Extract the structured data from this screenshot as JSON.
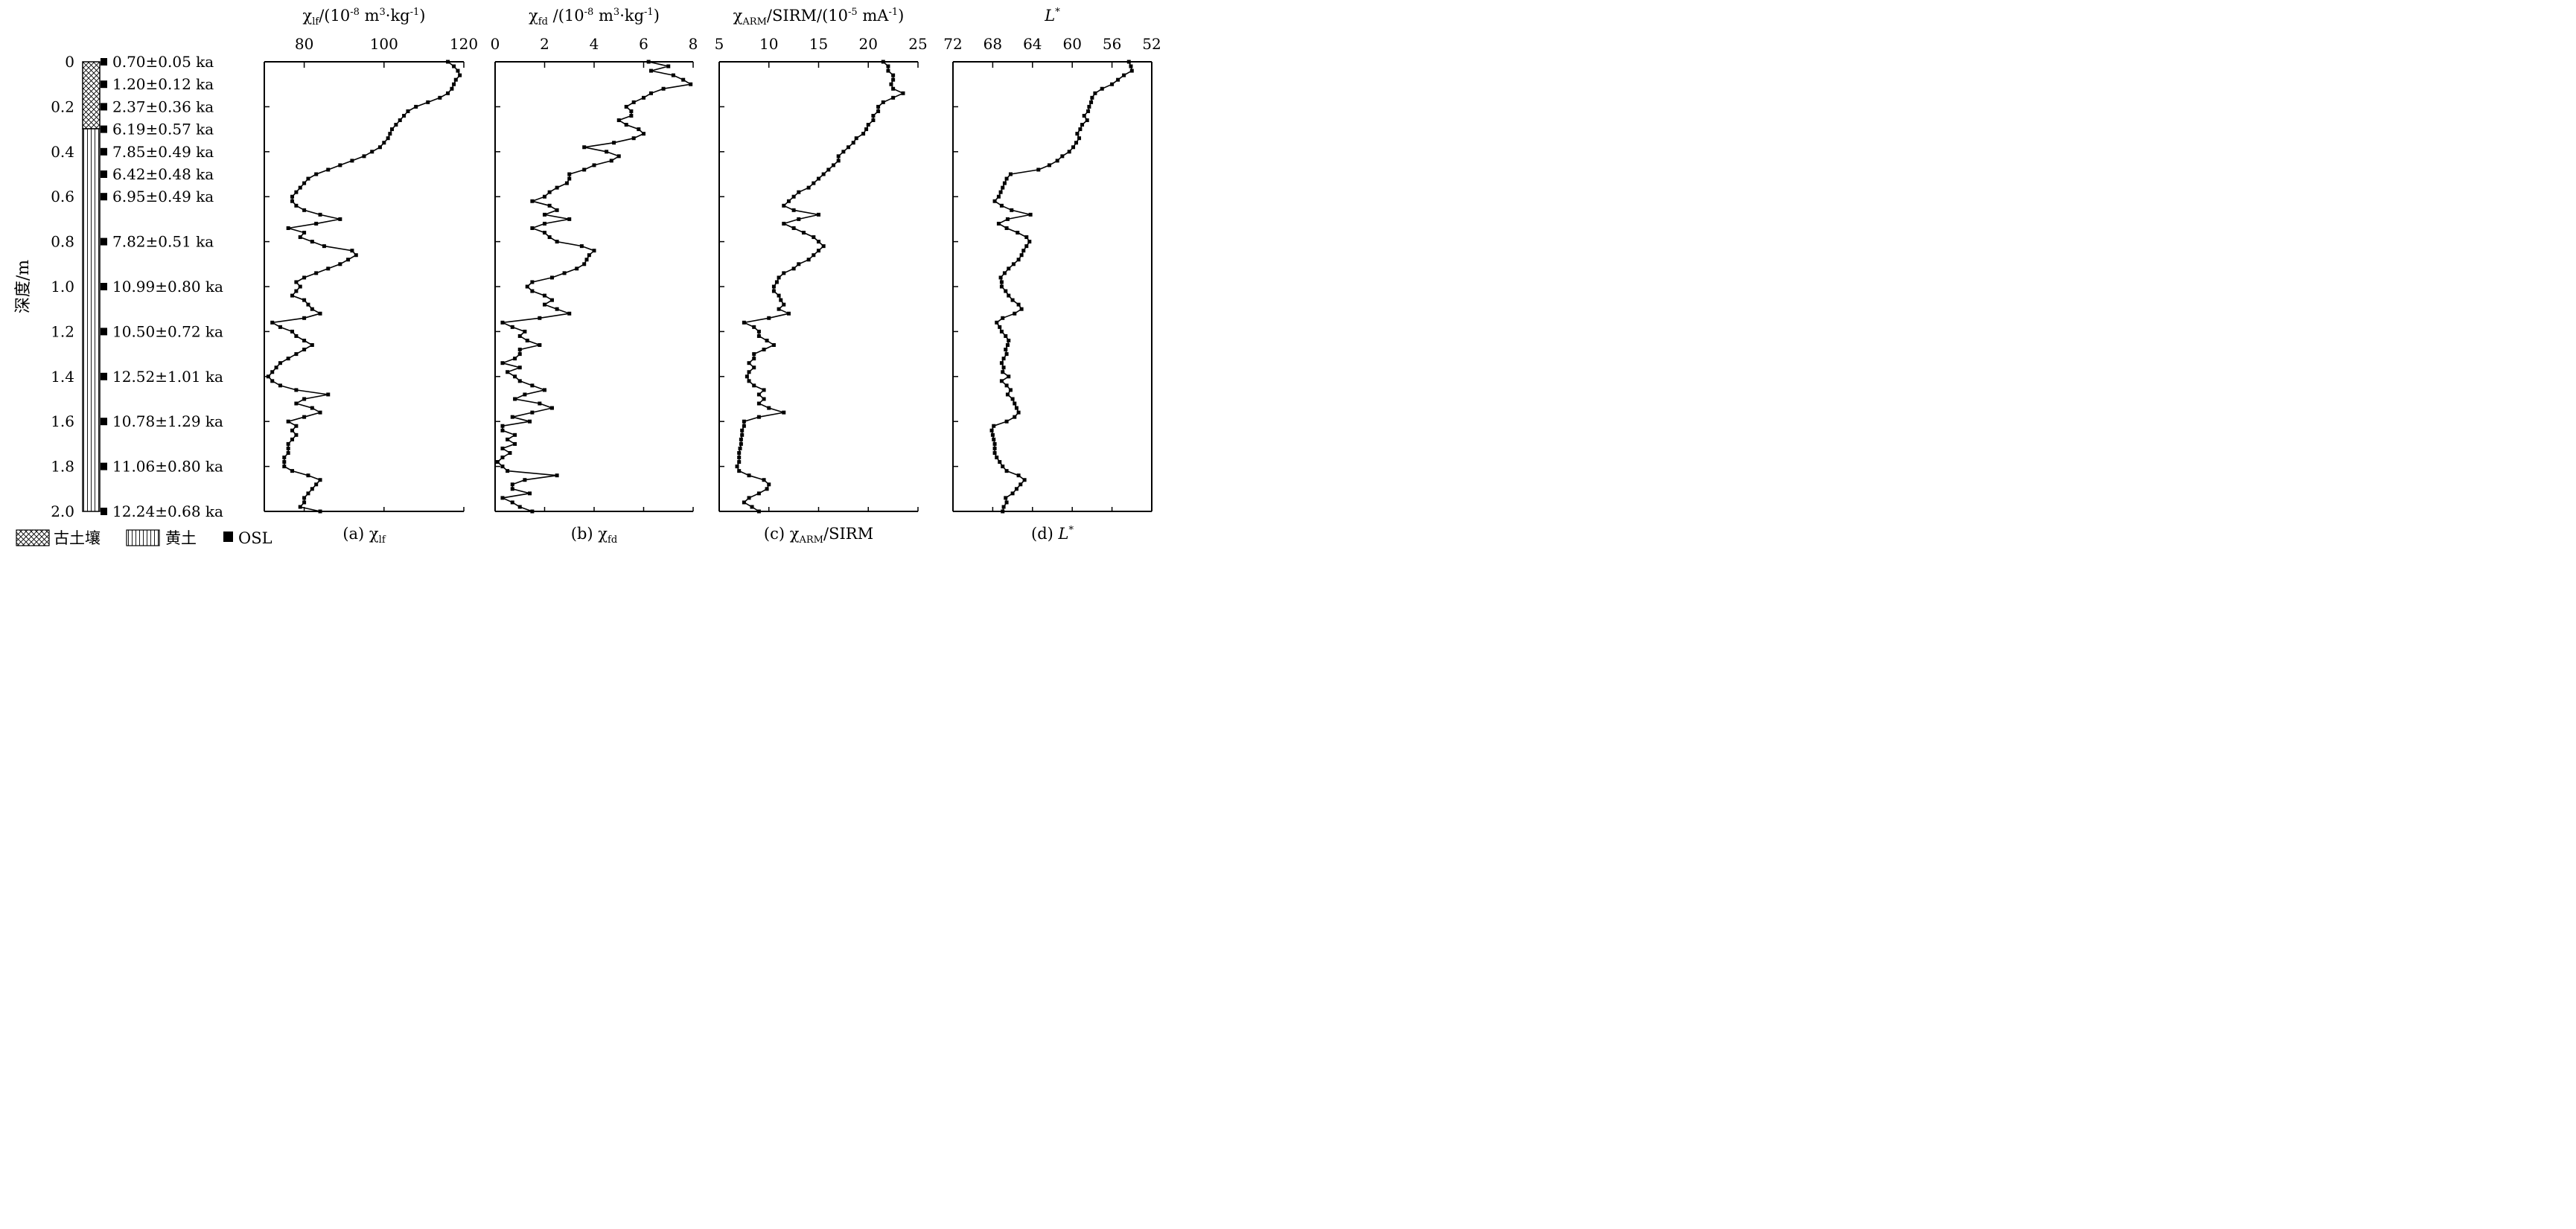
{
  "depth_axis": {
    "label": "深度/m",
    "ticks": [
      "0",
      "0.2",
      "0.4",
      "0.6",
      "0.8",
      "1.0",
      "1.2",
      "1.4",
      "1.6",
      "1.8",
      "2.0"
    ],
    "range": [
      0,
      2.0
    ]
  },
  "stratigraphy": [
    {
      "unit": "paleosol",
      "from": 0,
      "to": 0.3
    },
    {
      "unit": "loess",
      "from": 0.3,
      "to": 2.0
    }
  ],
  "osl": [
    {
      "depth": 0.0,
      "label": "0.70±0.05 ka"
    },
    {
      "depth": 0.1,
      "label": "1.20±0.12 ka"
    },
    {
      "depth": 0.2,
      "label": "2.37±0.36 ka"
    },
    {
      "depth": 0.3,
      "label": "6.19±0.57 ka"
    },
    {
      "depth": 0.4,
      "label": "7.85±0.49 ka"
    },
    {
      "depth": 0.5,
      "label": "6.42±0.48 ka"
    },
    {
      "depth": 0.6,
      "label": "6.95±0.49 ka"
    },
    {
      "depth": 0.8,
      "label": "7.82±0.51 ka"
    },
    {
      "depth": 1.0,
      "label": "10.99±0.80 ka"
    },
    {
      "depth": 1.2,
      "label": "10.50±0.72 ka"
    },
    {
      "depth": 1.4,
      "label": "12.52±1.01 ka"
    },
    {
      "depth": 1.6,
      "label": "10.78±1.29 ka"
    },
    {
      "depth": 1.8,
      "label": "11.06±0.80 ka"
    },
    {
      "depth": 2.0,
      "label": "12.24±0.68 ka"
    }
  ],
  "legend": [
    {
      "key": "paleosol",
      "label": "古土壤"
    },
    {
      "key": "loess",
      "label": "黄土"
    },
    {
      "key": "osl",
      "label": "OSL"
    }
  ],
  "chart_data": [
    {
      "type": "line",
      "title": "χlf/(10-8 m3·kg-1)",
      "caption": "(a) χlf",
      "xlim": [
        70,
        120
      ],
      "ticks": [
        "80",
        "100",
        "120"
      ],
      "depth": [
        0.0,
        0.02,
        0.04,
        0.06,
        0.08,
        0.1,
        0.12,
        0.14,
        0.16,
        0.18,
        0.2,
        0.22,
        0.24,
        0.26,
        0.28,
        0.3,
        0.32,
        0.34,
        0.36,
        0.38,
        0.4,
        0.42,
        0.44,
        0.46,
        0.48,
        0.5,
        0.52,
        0.54,
        0.56,
        0.58,
        0.6,
        0.62,
        0.64,
        0.66,
        0.68,
        0.7,
        0.72,
        0.74,
        0.76,
        0.78,
        0.8,
        0.82,
        0.84,
        0.86,
        0.88,
        0.9,
        0.92,
        0.94,
        0.96,
        0.98,
        1.0,
        1.02,
        1.04,
        1.06,
        1.08,
        1.1,
        1.12,
        1.14,
        1.16,
        1.18,
        1.2,
        1.22,
        1.24,
        1.26,
        1.28,
        1.3,
        1.32,
        1.34,
        1.36,
        1.38,
        1.4,
        1.42,
        1.44,
        1.46,
        1.48,
        1.5,
        1.52,
        1.54,
        1.56,
        1.58,
        1.6,
        1.62,
        1.64,
        1.66,
        1.68,
        1.7,
        1.72,
        1.74,
        1.76,
        1.78,
        1.8,
        1.82,
        1.84,
        1.86,
        1.88,
        1.9,
        1.92,
        1.94,
        1.96,
        1.98,
        2.0
      ],
      "values": [
        116,
        117.5,
        118.5,
        119,
        118,
        117.5,
        117,
        116,
        114,
        111,
        108,
        106,
        105,
        104,
        103,
        102,
        101.5,
        101,
        100,
        99,
        97,
        95,
        92,
        89,
        86,
        83,
        81,
        80,
        79,
        78,
        77,
        77,
        78,
        80,
        84,
        89,
        83,
        76,
        80,
        79,
        82,
        85,
        92,
        93,
        91,
        89,
        86,
        83,
        80,
        78,
        79,
        78,
        77,
        80,
        81,
        82,
        84,
        80,
        72,
        74,
        77,
        78,
        80,
        82,
        80,
        78,
        76,
        74,
        73,
        72,
        71,
        72,
        74,
        78,
        86,
        80,
        78,
        82,
        84,
        80,
        76,
        78,
        77,
        78,
        77,
        76,
        76,
        76,
        75,
        75,
        75,
        77,
        81,
        84,
        83,
        82,
        81,
        80,
        80,
        79,
        84
      ]
    },
    {
      "type": "line",
      "title": "χfd /(10-8 m3·kg-1)",
      "caption": "(b) χfd",
      "xlim": [
        0,
        8
      ],
      "ticks": [
        "0",
        "2",
        "4",
        "6",
        "8"
      ],
      "depth": [
        0.0,
        0.02,
        0.04,
        0.06,
        0.08,
        0.1,
        0.12,
        0.14,
        0.16,
        0.18,
        0.2,
        0.22,
        0.24,
        0.26,
        0.28,
        0.3,
        0.32,
        0.34,
        0.36,
        0.38,
        0.4,
        0.42,
        0.44,
        0.46,
        0.48,
        0.5,
        0.52,
        0.54,
        0.56,
        0.58,
        0.6,
        0.62,
        0.64,
        0.66,
        0.68,
        0.7,
        0.72,
        0.74,
        0.76,
        0.78,
        0.8,
        0.82,
        0.84,
        0.86,
        0.88,
        0.9,
        0.92,
        0.94,
        0.96,
        0.98,
        1.0,
        1.02,
        1.04,
        1.06,
        1.08,
        1.1,
        1.12,
        1.14,
        1.16,
        1.18,
        1.2,
        1.22,
        1.24,
        1.26,
        1.28,
        1.3,
        1.32,
        1.34,
        1.36,
        1.38,
        1.4,
        1.42,
        1.44,
        1.46,
        1.48,
        1.5,
        1.52,
        1.54,
        1.56,
        1.58,
        1.6,
        1.62,
        1.64,
        1.66,
        1.68,
        1.7,
        1.72,
        1.74,
        1.76,
        1.78,
        1.8,
        1.82,
        1.84,
        1.86,
        1.88,
        1.9,
        1.92,
        1.94,
        1.96,
        1.98,
        2.0
      ],
      "values": [
        6.2,
        7,
        6.3,
        7.2,
        7.6,
        7.9,
        6.8,
        6.3,
        6.0,
        5.6,
        5.3,
        5.5,
        5.5,
        5.0,
        5.3,
        5.8,
        6.0,
        5.6,
        4.8,
        3.6,
        4.5,
        5.0,
        4.7,
        4.0,
        3.6,
        3.0,
        3.0,
        2.9,
        2.5,
        2.2,
        2.0,
        1.5,
        2.2,
        2.5,
        2.0,
        3.0,
        2.0,
        1.5,
        2.0,
        2.2,
        2.5,
        3.5,
        4.0,
        3.8,
        3.7,
        3.6,
        3.3,
        2.8,
        2.3,
        1.5,
        1.3,
        1.5,
        2.0,
        2.3,
        2.0,
        2.5,
        3.0,
        1.8,
        0.3,
        0.7,
        1.2,
        1.0,
        1.3,
        1.8,
        1.0,
        1.0,
        0.8,
        0.3,
        1.0,
        0.5,
        0.8,
        1.0,
        1.5,
        2.0,
        1.2,
        0.8,
        1.8,
        2.3,
        1.5,
        0.7,
        1.4,
        0.3,
        0.3,
        0.8,
        0.5,
        0.8,
        0.3,
        0.6,
        0.3,
        0.1,
        0.3,
        0.5,
        2.5,
        1.2,
        0.7,
        0.7,
        1.4,
        0.3,
        0.7,
        1.0,
        1.5
      ]
    },
    {
      "type": "line",
      "title": "χARM/SIRM/(10-5 mA-1)",
      "caption": "(c) χARM/SIRM",
      "xlim": [
        5,
        25
      ],
      "ticks": [
        "5",
        "10",
        "15",
        "20",
        "25"
      ],
      "depth": [
        0.0,
        0.02,
        0.04,
        0.06,
        0.08,
        0.1,
        0.12,
        0.14,
        0.16,
        0.18,
        0.2,
        0.22,
        0.24,
        0.26,
        0.28,
        0.3,
        0.32,
        0.34,
        0.36,
        0.38,
        0.4,
        0.42,
        0.44,
        0.46,
        0.48,
        0.5,
        0.52,
        0.54,
        0.56,
        0.58,
        0.6,
        0.62,
        0.64,
        0.66,
        0.68,
        0.7,
        0.72,
        0.74,
        0.76,
        0.78,
        0.8,
        0.82,
        0.84,
        0.86,
        0.88,
        0.9,
        0.92,
        0.94,
        0.96,
        0.98,
        1.0,
        1.02,
        1.04,
        1.06,
        1.08,
        1.1,
        1.12,
        1.14,
        1.16,
        1.18,
        1.2,
        1.22,
        1.24,
        1.26,
        1.28,
        1.3,
        1.32,
        1.34,
        1.36,
        1.38,
        1.4,
        1.42,
        1.44,
        1.46,
        1.48,
        1.5,
        1.52,
        1.54,
        1.56,
        1.58,
        1.6,
        1.62,
        1.64,
        1.66,
        1.68,
        1.7,
        1.72,
        1.74,
        1.76,
        1.78,
        1.8,
        1.82,
        1.84,
        1.86,
        1.88,
        1.9,
        1.92,
        1.94,
        1.96,
        1.98,
        2.0
      ],
      "values": [
        21.5,
        22,
        22,
        22.5,
        22.5,
        22.3,
        22.5,
        23.5,
        22.5,
        21.5,
        21.0,
        21.0,
        20.5,
        20.5,
        20.0,
        19.8,
        19.5,
        18.8,
        18.5,
        18.0,
        17.5,
        17.0,
        17.0,
        16.5,
        16.0,
        15.5,
        15.0,
        14.5,
        14.0,
        13.0,
        12.5,
        12.0,
        11.5,
        12.5,
        15.0,
        13.0,
        11.5,
        12.5,
        13.5,
        14.5,
        15.0,
        15.5,
        15.0,
        14.5,
        14.0,
        13.0,
        12.5,
        11.5,
        11.0,
        10.8,
        10.5,
        10.5,
        11.0,
        11.2,
        11.5,
        11.0,
        12.0,
        10.0,
        7.5,
        8.5,
        9.0,
        9.0,
        9.8,
        10.5,
        9.5,
        8.5,
        8.5,
        8.0,
        8.5,
        8.0,
        7.8,
        8.0,
        8.5,
        9.5,
        9.0,
        9.5,
        9.0,
        10.0,
        11.5,
        9.0,
        7.5,
        7.5,
        7.3,
        7.3,
        7.2,
        7.2,
        7.1,
        7.0,
        7.0,
        7.0,
        6.8,
        7.0,
        8.0,
        9.5,
        10.0,
        9.8,
        9.0,
        8.0,
        7.5,
        8.3,
        9.0
      ]
    },
    {
      "type": "line",
      "title": "L*",
      "caption": "(d) L*",
      "xlim": [
        72,
        52
      ],
      "ticks": [
        "72",
        "68",
        "64",
        "60",
        "56",
        "52"
      ],
      "depth": [
        0.0,
        0.02,
        0.04,
        0.06,
        0.08,
        0.1,
        0.12,
        0.14,
        0.16,
        0.18,
        0.2,
        0.22,
        0.24,
        0.26,
        0.28,
        0.3,
        0.32,
        0.34,
        0.36,
        0.38,
        0.4,
        0.42,
        0.44,
        0.46,
        0.48,
        0.5,
        0.52,
        0.54,
        0.56,
        0.58,
        0.6,
        0.62,
        0.64,
        0.66,
        0.68,
        0.7,
        0.72,
        0.74,
        0.76,
        0.78,
        0.8,
        0.82,
        0.84,
        0.86,
        0.88,
        0.9,
        0.92,
        0.94,
        0.96,
        0.98,
        1.0,
        1.02,
        1.04,
        1.06,
        1.08,
        1.1,
        1.12,
        1.14,
        1.16,
        1.18,
        1.2,
        1.22,
        1.24,
        1.26,
        1.28,
        1.3,
        1.32,
        1.34,
        1.36,
        1.38,
        1.4,
        1.42,
        1.44,
        1.46,
        1.48,
        1.5,
        1.52,
        1.54,
        1.56,
        1.58,
        1.6,
        1.62,
        1.64,
        1.66,
        1.68,
        1.7,
        1.72,
        1.74,
        1.76,
        1.78,
        1.8,
        1.82,
        1.84,
        1.86,
        1.88,
        1.9,
        1.92,
        1.94,
        1.96,
        1.98,
        2.0
      ],
      "values": [
        54.3,
        54.1,
        54.0,
        54.8,
        55.4,
        56.0,
        57.0,
        57.7,
        58.0,
        58.1,
        58.3,
        58.4,
        58.8,
        58.5,
        59.0,
        59.2,
        59.5,
        59.3,
        59.6,
        59.9,
        60.3,
        61.0,
        61.5,
        62.3,
        63.4,
        66.2,
        66.6,
        66.8,
        67.0,
        67.2,
        67.4,
        67.8,
        67.1,
        66.1,
        64.2,
        66.5,
        67.4,
        66.6,
        65.5,
        64.6,
        64.3,
        64.6,
        64.9,
        65.1,
        65.4,
        65.9,
        66.4,
        66.8,
        67.2,
        67.1,
        67.1,
        66.7,
        66.4,
        66.0,
        65.4,
        65.1,
        65.8,
        67.0,
        67.6,
        67.3,
        67.1,
        66.7,
        66.4,
        66.5,
        66.7,
        66.6,
        66.9,
        67.1,
        66.9,
        67.0,
        66.4,
        67.1,
        66.6,
        66.2,
        66.5,
        66.0,
        65.8,
        65.6,
        65.4,
        65.8,
        66.6,
        67.9,
        68.1,
        68.0,
        67.9,
        67.8,
        67.8,
        67.8,
        67.6,
        67.3,
        67.0,
        66.6,
        65.4,
        64.8,
        65.2,
        65.6,
        66.0,
        66.7,
        66.6,
        66.9,
        67.0
      ]
    }
  ]
}
